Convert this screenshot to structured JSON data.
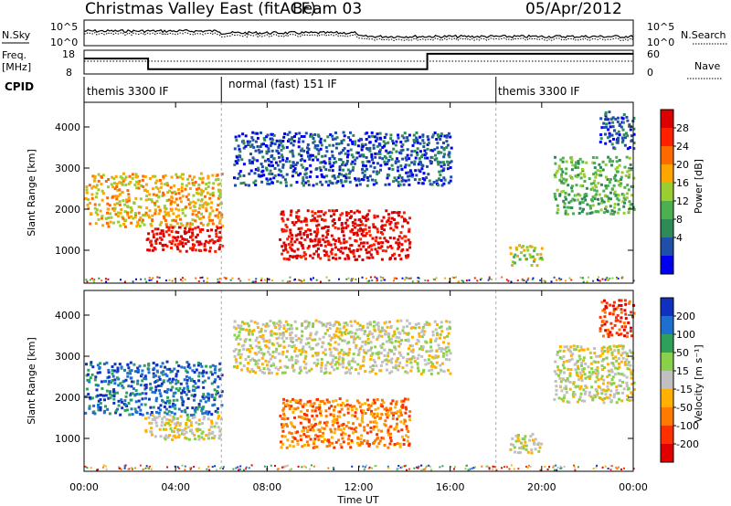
{
  "header": {
    "title": "Christmas Valley East (fitACF)",
    "beam": "Beam 03",
    "date": "05/Apr/2012"
  },
  "noise_panel": {
    "left_label": "N.Sky",
    "right_label": "N.Search",
    "left_ticks": [
      "10^5",
      "10^0"
    ],
    "right_ticks": [
      "10^5",
      "10^0"
    ]
  },
  "freq_panel": {
    "left_label_1": "Freq.",
    "left_label_2": "[MHz]",
    "right_label": "Nave",
    "left_ticks": [
      "18",
      "8"
    ],
    "right_ticks": [
      "60",
      "0"
    ]
  },
  "cpid": {
    "label": "CPID",
    "segments": [
      {
        "start": 0.0,
        "end": 6.0,
        "text": "themis 3300 IF"
      },
      {
        "start": 6.0,
        "end": 18.0,
        "text": "normal (fast) 151 IF"
      },
      {
        "start": 18.0,
        "end": 24.0,
        "text": "themis 3300 IF"
      }
    ]
  },
  "power_panel": {
    "ylabel": "Slant Range [km]",
    "scale_label": "Power [dB]",
    "scale_ticks": [
      "28",
      "24",
      "20",
      "16",
      "12",
      "8",
      "4"
    ],
    "colors": [
      "#0000ee",
      "#1f4fa8",
      "#2e8b57",
      "#4caf50",
      "#9acd32",
      "#ffa500",
      "#ff6a00",
      "#ff2000",
      "#dd0000"
    ]
  },
  "velocity_panel": {
    "ylabel": "Slant Range [km]",
    "scale_label": "Velocity [m s⁻¹]",
    "scale_ticks": [
      "200",
      "100",
      "50",
      "15",
      "-15",
      "-50",
      "-100",
      "-200"
    ],
    "colors": [
      "#1030c0",
      "#1f6fd0",
      "#2ea05a",
      "#8bd04a",
      "#c0c0c0",
      "#ffb000",
      "#ff7a00",
      "#ff3000",
      "#e00000"
    ]
  },
  "xaxis": {
    "label": "Time UT",
    "ticks": [
      "00:00",
      "04:00",
      "08:00",
      "12:00",
      "16:00",
      "20:00",
      "00:00"
    ]
  },
  "chart_data": {
    "type": "heatmap",
    "title": "Christmas Valley East (fitACF)",
    "xlabel": "Time UT",
    "ylabel": "Slant Range [km]",
    "xlim": [
      0,
      24
    ],
    "ylim": [
      200,
      4600
    ],
    "y_ticks": [
      1000,
      2000,
      3000,
      4000
    ],
    "power_scale": [
      4,
      8,
      12,
      16,
      20,
      24,
      28
    ],
    "velocity_scale": [
      -200,
      -100,
      -50,
      -15,
      15,
      50,
      100,
      200
    ],
    "echo_regions": [
      {
        "t0": 0.0,
        "t1": 6.0,
        "r0": 1600,
        "r1": 2900,
        "power": 20,
        "velocity": 150
      },
      {
        "t0": 2.6,
        "t1": 6.0,
        "r0": 1000,
        "r1": 1600,
        "power": 28,
        "velocity": -20
      },
      {
        "t0": 8.5,
        "t1": 14.2,
        "r0": 800,
        "r1": 2000,
        "power": 28,
        "velocity": -80
      },
      {
        "t0": 6.5,
        "t1": 16.0,
        "r0": 2600,
        "r1": 3900,
        "power": 6,
        "velocity": 0
      },
      {
        "t0": 18.5,
        "t1": 20.0,
        "r0": 650,
        "r1": 1150,
        "power": 16,
        "velocity": 0
      },
      {
        "t0": 20.5,
        "t1": 24.0,
        "r0": 1900,
        "r1": 3300,
        "power": 12,
        "velocity": 0
      },
      {
        "t0": 22.5,
        "t1": 24.0,
        "r0": 3500,
        "r1": 4400,
        "power": 8,
        "velocity": -150
      }
    ],
    "frequency_mhz": [
      {
        "t0": 0.0,
        "t1": 1.0,
        "value": 14.5
      },
      {
        "t0": 1.0,
        "t1": 2.8,
        "value": 14.5
      },
      {
        "t0": 2.8,
        "t1": 6.0,
        "value": 10.0
      },
      {
        "t0": 6.0,
        "t1": 15.0,
        "value": 10.0
      },
      {
        "t0": 15.0,
        "t1": 24.0,
        "value": 16.5
      }
    ]
  }
}
